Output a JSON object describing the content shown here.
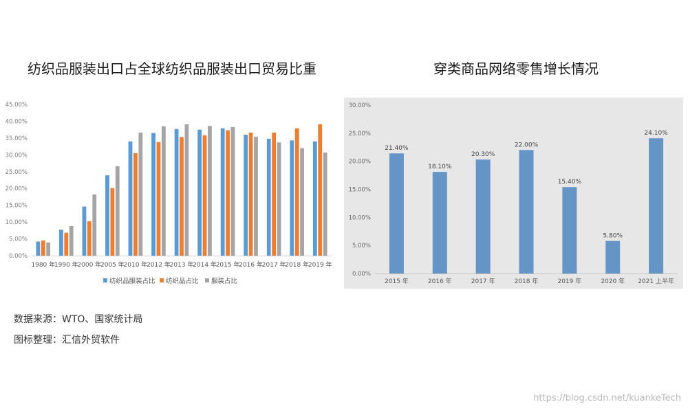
{
  "left_title": "纺织品服装出口占全球纺织品服装出口贸易比重",
  "right_title": "穿类商品网络零售增长情况",
  "source": "数据来源：WTO、国家统计局",
  "compiled_by": "图标整理：汇信外贸软件",
  "watermark": "https://blog.csdn.net/kuankeTech",
  "colors": {
    "blue": "#5b9bd5",
    "orange": "#ed7d31",
    "gray": "#a5a5a5",
    "right_bar": "#6594c7",
    "right_bg": "#e7e7e7"
  },
  "chart_data": [
    {
      "type": "bar",
      "categories": [
        "1980 年",
        "1990 年",
        "2000 年",
        "2005 年",
        "2010 年",
        "2012 年",
        "2013 年",
        "2014 年",
        "2015 年",
        "2016 年",
        "2017 年",
        "2018 年",
        "2019 年"
      ],
      "series": [
        {
          "name": "纺织品服装占比",
          "values": [
            4.2,
            7.7,
            14.6,
            23.9,
            34.0,
            36.5,
            37.7,
            37.5,
            37.9,
            36.0,
            34.8,
            34.3,
            34.0
          ]
        },
        {
          "name": "纺织品占比",
          "values": [
            4.5,
            6.8,
            10.2,
            20.1,
            30.5,
            33.8,
            35.3,
            35.8,
            37.3,
            36.6,
            36.6,
            37.9,
            39.1
          ]
        },
        {
          "name": "服装占比",
          "values": [
            3.9,
            8.8,
            18.2,
            26.6,
            36.6,
            38.5,
            39.1,
            38.6,
            38.3,
            35.4,
            33.7,
            32.0,
            30.7
          ]
        }
      ],
      "yticks": [
        "0.00%",
        "5.00%",
        "10.00%",
        "15.00%",
        "20.00%",
        "25.00%",
        "30.00%",
        "35.00%",
        "40.00%",
        "45.00%"
      ],
      "ylim": [
        0,
        45
      ],
      "legend": "bottom",
      "grid": false
    },
    {
      "type": "bar",
      "categories": [
        "2015 年",
        "2016 年",
        "2017 年",
        "2018 年",
        "2019 年",
        "2020 年",
        "2021 上半年"
      ],
      "values": [
        21.4,
        18.1,
        20.3,
        22.0,
        15.4,
        5.8,
        24.1
      ],
      "data_labels": [
        "21.40%",
        "18.10%",
        "20.30%",
        "22.00%",
        "15.40%",
        "5.80%",
        "24.10%"
      ],
      "yticks": [
        "0.00%",
        "5.00%",
        "10.00%",
        "15.00%",
        "20.00%",
        "25.00%",
        "30.00%"
      ],
      "ylim": [
        0,
        30
      ],
      "grid": false
    }
  ]
}
